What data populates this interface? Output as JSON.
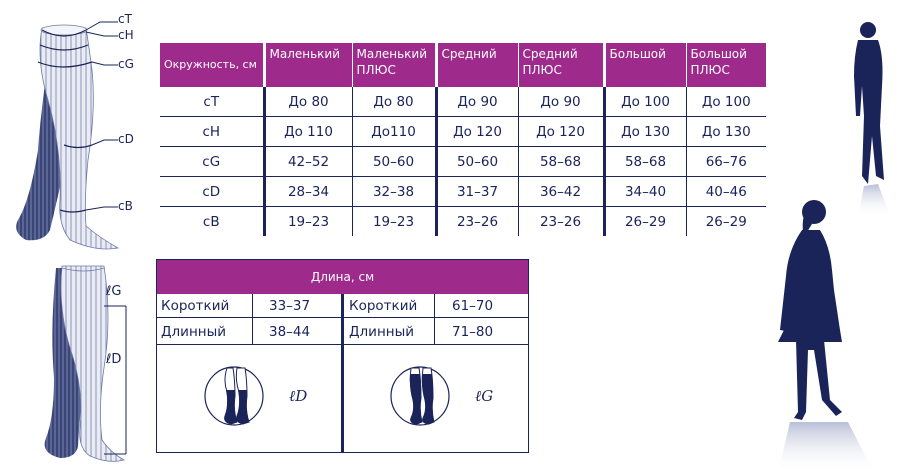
{
  "leg_labels": {
    "cT": "cT",
    "cH": "cH",
    "cG": "cG",
    "cD": "cD",
    "cB": "cB"
  },
  "length_labels": {
    "lG": "ℓG",
    "lD": "ℓD"
  },
  "size_table": {
    "header": [
      "Окружность, см",
      "Маленький",
      "Маленький ПЛЮС",
      "Средний",
      "Средний ПЛЮС",
      "Большой",
      "Большой ПЛЮС"
    ],
    "rows": [
      [
        "cT",
        "До 80",
        "До 80",
        "До 90",
        "До 90",
        "До 100",
        "До 100"
      ],
      [
        "cH",
        "До 110",
        "До110",
        "До 120",
        "До 120",
        "До 130",
        "До 130"
      ],
      [
        "cG",
        "42–52",
        "50–60",
        "50–60",
        "58–68",
        "58–68",
        "66–76"
      ],
      [
        "cD",
        "28–34",
        "32–38",
        "31–37",
        "36–42",
        "34–40",
        "40–46"
      ],
      [
        "cB",
        "19–23",
        "19–23",
        "23–26",
        "23–26",
        "26–29",
        "26–29"
      ]
    ]
  },
  "length_table": {
    "title": "Длина, см",
    "left": [
      {
        "label": "Короткий",
        "value": "33–37"
      },
      {
        "label": "Длинный",
        "value": "38–44"
      }
    ],
    "right": [
      {
        "label": "Короткий",
        "value": "61–70"
      },
      {
        "label": "Длинный",
        "value": "71–80"
      }
    ],
    "left_caption": "ℓD",
    "right_caption": "ℓG"
  },
  "colors": {
    "accent": "#9e2a8c",
    "navy": "#1a2458"
  }
}
